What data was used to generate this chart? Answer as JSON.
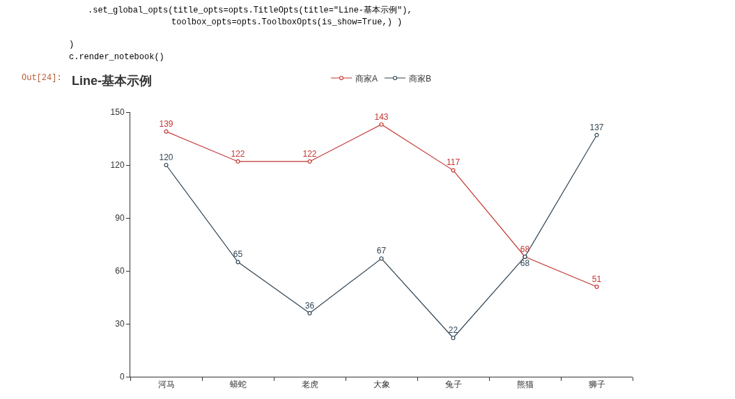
{
  "chart_data": {
    "type": "line",
    "title": "Line-基本示例",
    "categories": [
      "河马",
      "蟒蛇",
      "老虎",
      "大象",
      "兔子",
      "熊猫",
      "狮子"
    ],
    "series": [
      {
        "name": "商家A",
        "color": "#c23531",
        "values": [
          139,
          122,
          122,
          143,
          117,
          68,
          51
        ]
      },
      {
        "name": "商家B",
        "color": "#2f4554",
        "values": [
          120,
          65,
          36,
          67,
          22,
          68,
          137
        ]
      }
    ],
    "ylim": [
      0,
      150
    ],
    "yticks": [
      0,
      30,
      60,
      90,
      120,
      150
    ],
    "grid": false,
    "legend": "top",
    "marker": "circle",
    "line_style": "solid",
    "data_labels": true,
    "annotations": [
      ".set_global_opts(title_opts=opts.TitleOpts(title=\"Line-基本示例\"),",
      "toolbox_opts=opts.ToolboxOpts(is_show=True,) )",
      ")",
      "c.render_notebook()",
      "Out[24]:"
    ]
  }
}
